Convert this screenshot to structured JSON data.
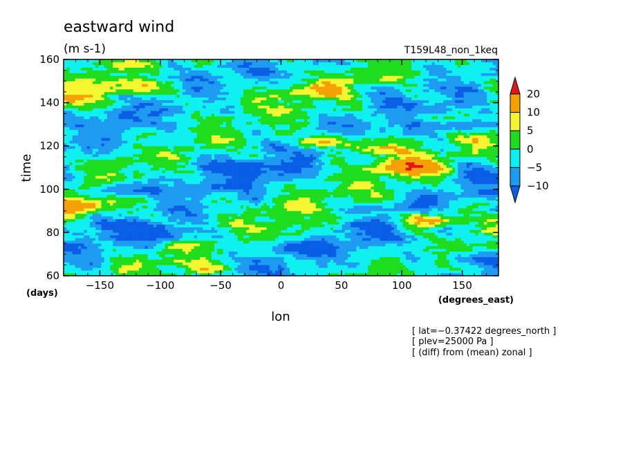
{
  "chart_data": {
    "type": "heatmap",
    "title": "eastward wind",
    "units": "(m s-1)",
    "experiment": "T159L48_non_1keq",
    "xlabel": "lon",
    "xunits": "(degrees_east)",
    "ylabel": "time",
    "yunits": "(days)",
    "xlim": [
      -180,
      180
    ],
    "ylim": [
      60,
      160
    ],
    "xticks": [
      -150,
      -100,
      -50,
      0,
      50,
      100,
      150
    ],
    "yticks": [
      60,
      80,
      100,
      120,
      140,
      160
    ],
    "colorbar": {
      "levels": [
        -10,
        -5,
        0,
        5,
        10,
        20
      ],
      "colors": [
        "#0a5ee6",
        "#1e9bf0",
        "#0ff0f0",
        "#1edc1e",
        "#f5f532",
        "#f5a005",
        "#e61414"
      ],
      "level_labels": [
        "20",
        "10",
        "5",
        "0",
        "−5",
        "−10"
      ]
    },
    "notes": [
      "[ lat=−0.37422 degrees_north ]",
      "[ plev=25000 Pa ]",
      "[ (diff) from (mean) zonal ]"
    ],
    "features": [
      {
        "lon": -120,
        "time": 147,
        "value": 16
      },
      {
        "lon": -175,
        "time": 141,
        "value": 14
      },
      {
        "lon": -165,
        "time": 92,
        "value": 18
      },
      {
        "lon": 40,
        "time": 122,
        "value": 14
      },
      {
        "lon": 105,
        "time": 110,
        "value": 18
      },
      {
        "lon": 125,
        "time": 86,
        "value": 19
      },
      {
        "lon": 80,
        "time": 118,
        "value": 10
      },
      {
        "lon": 30,
        "time": 146,
        "value": 9
      },
      {
        "lon": -60,
        "time": 63,
        "value": 8
      },
      {
        "lon": -100,
        "time": 80,
        "value": -12
      },
      {
        "lon": -40,
        "time": 110,
        "value": -11
      },
      {
        "lon": 20,
        "time": 72,
        "value": -11
      },
      {
        "lon": -130,
        "time": 100,
        "value": -12
      },
      {
        "lon": 160,
        "time": 130,
        "value": -11
      },
      {
        "lon": 160,
        "time": 68,
        "value": -10
      }
    ]
  }
}
